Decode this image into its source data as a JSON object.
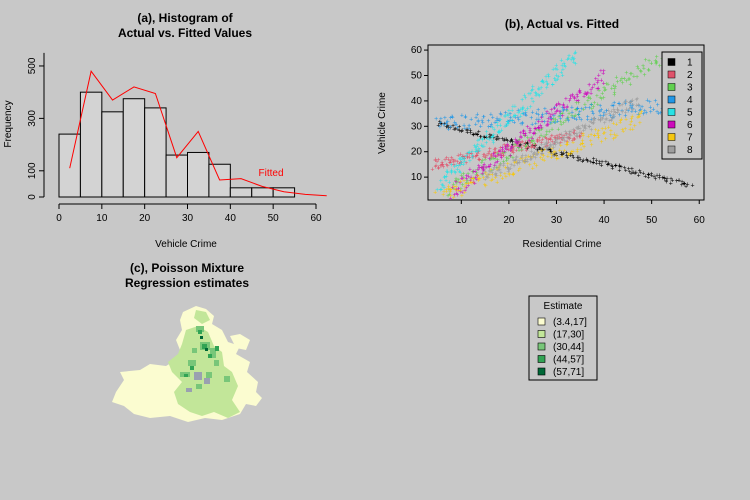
{
  "panels": {
    "a_title_line1": "(a), Histogram of",
    "a_title_line2": "Actual vs. Fitted Values",
    "b_title": "(b), Actual vs. Fitted",
    "c_title_line1": "(c), Poisson Mixture",
    "c_title_line2": "Regression estimates"
  },
  "chart_data": [
    {
      "type": "bar",
      "title": "(a), Histogram of Actual vs. Fitted Values",
      "xlabel": "Vehicle Crime",
      "ylabel": "Frequency",
      "xlim": [
        0,
        62
      ],
      "ylim": [
        0,
        580
      ],
      "xticks": [
        0,
        10,
        20,
        30,
        40,
        50,
        60
      ],
      "yticks": [
        0,
        100,
        300,
        500
      ],
      "bins": [
        [
          0,
          5
        ],
        [
          5,
          10
        ],
        [
          10,
          15
        ],
        [
          15,
          20
        ],
        [
          20,
          25
        ],
        [
          25,
          30
        ],
        [
          30,
          35
        ],
        [
          35,
          40
        ],
        [
          40,
          45
        ],
        [
          45,
          50
        ],
        [
          50,
          55
        ]
      ],
      "values": [
        240,
        400,
        325,
        375,
        340,
        160,
        170,
        125,
        35,
        35,
        35
      ],
      "fitted": {
        "name": "Fitted",
        "color": "#ff0000",
        "x": [
          2.5,
          7.5,
          12.5,
          17.5,
          22.5,
          27.5,
          32.5,
          37.5,
          42.5,
          47.5,
          52.5,
          57.5,
          62.5
        ],
        "y": [
          110,
          480,
          370,
          420,
          395,
          150,
          250,
          65,
          70,
          40,
          20,
          10,
          5
        ]
      }
    },
    {
      "type": "scatter",
      "title": "(b), Actual vs. Fitted",
      "xlabel": "Residential Crime",
      "ylabel": "Vehicle Crime",
      "xlim": [
        3,
        61
      ],
      "ylim": [
        1,
        62
      ],
      "xticks": [
        10,
        20,
        30,
        40,
        50,
        60
      ],
      "yticks": [
        10,
        20,
        30,
        40,
        50,
        60
      ],
      "legend_position": "top-right",
      "series": [
        {
          "name": "1",
          "color": "#000000",
          "line": {
            "x0": 5,
            "x1": 58,
            "y0": 31,
            "y1": 7
          },
          "noise": 1
        },
        {
          "name": "2",
          "color": "#df536b",
          "line": {
            "x0": 4,
            "x1": 35,
            "y0": 15,
            "y1": 27
          },
          "noise": 2
        },
        {
          "name": "3",
          "color": "#61d04f",
          "line": {
            "x0": 7,
            "x1": 52,
            "y0": 5,
            "y1": 57
          },
          "noise": 3
        },
        {
          "name": "4",
          "color": "#2297e6",
          "line": {
            "x0": 5,
            "x1": 52,
            "y0": 31,
            "y1": 38
          },
          "noise": 3
        },
        {
          "name": "5",
          "color": "#28e2e5",
          "line": {
            "x0": 5,
            "x1": 34,
            "y0": 7,
            "y1": 58
          },
          "noise": 3
        },
        {
          "name": "6",
          "color": "#cd0bbc",
          "line": {
            "x0": 8,
            "x1": 40,
            "y0": 4,
            "y1": 50
          },
          "noise": 3
        },
        {
          "name": "7",
          "color": "#f5c710",
          "line": {
            "x0": 5,
            "x1": 48,
            "y0": 2,
            "y1": 33
          },
          "noise": 3
        },
        {
          "name": "8",
          "color": "#9e9e9e",
          "line": {
            "x0": 15,
            "x1": 47,
            "y0": 10,
            "y1": 40
          },
          "noise": 2
        }
      ]
    },
    {
      "type": "other",
      "title": "(c), Poisson Mixture Regression estimates",
      "legend_title": "Estimate",
      "legend": [
        {
          "label": "(3.4,17]",
          "color": "#fbfcd0"
        },
        {
          "label": "(17,30]",
          "color": "#c2e699"
        },
        {
          "label": "(30,44]",
          "color": "#78c679"
        },
        {
          "label": "(44,57]",
          "color": "#31a354"
        },
        {
          "label": "(57,71]",
          "color": "#006837"
        }
      ]
    }
  ]
}
